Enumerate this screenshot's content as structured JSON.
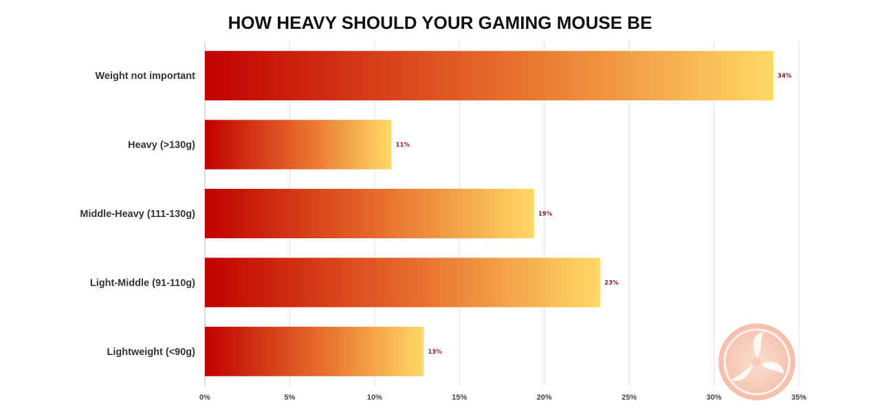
{
  "chart_data": {
    "type": "bar",
    "orientation": "horizontal",
    "title": "HOW HEAVY SHOULD YOUR GAMING MOUSE BE",
    "xlabel": "",
    "ylabel": "",
    "categories": [
      "Weight not important",
      "Heavy (>130g)",
      "Middle-Heavy (111-130g)",
      "Light-Middle (91-110g)",
      "Lightweight (<90g)"
    ],
    "values": [
      33.5,
      11,
      19.4,
      23.3,
      12.9
    ],
    "value_labels": [
      "34%",
      "11%",
      "19%",
      "23%",
      "13%"
    ],
    "xlim": [
      0,
      35
    ],
    "x_ticks": [
      0,
      5,
      10,
      15,
      20,
      25,
      30,
      35
    ],
    "x_tick_labels": [
      "0%",
      "5%",
      "10%",
      "15%",
      "20%",
      "25%",
      "30%",
      "35%"
    ],
    "grid": true,
    "legend": "none",
    "colors": {
      "bar_start": "#c00000",
      "bar_mid": "#e8712e",
      "bar_end": "#ffd966",
      "data_label": "#8b1a1a",
      "grid": "#dddddd",
      "title": "#111111"
    }
  },
  "watermark": {
    "icon": "kitguru-logo-icon"
  }
}
